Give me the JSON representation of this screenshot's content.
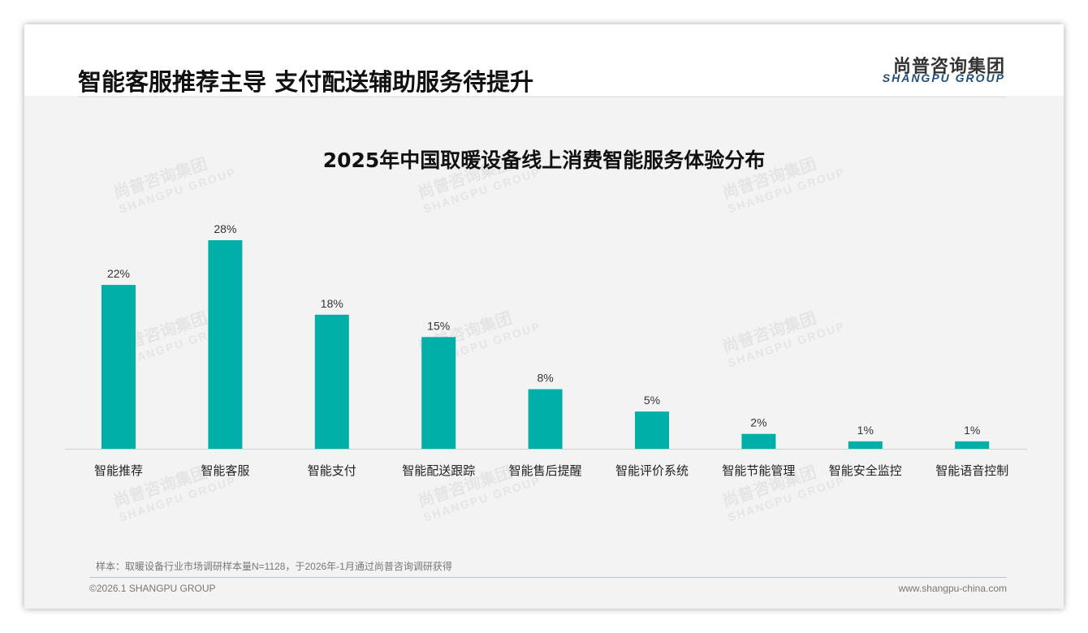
{
  "header": {
    "title": "智能客服推荐主导 支付配送辅助服务待提升",
    "logo_cn": "尚普咨询集团",
    "logo_en": "SHANGPU GROUP"
  },
  "chart_data": {
    "type": "bar",
    "title": "2025年中国取暖设备线上消费智能服务体验分布",
    "categories": [
      "智能推荐",
      "智能客服",
      "智能支付",
      "智能配送跟踪",
      "智能售后提醒",
      "智能评价系统",
      "智能节能管理",
      "智能安全监控",
      "智能语音控制"
    ],
    "values": [
      22,
      28,
      18,
      15,
      8,
      5,
      2,
      1,
      1
    ],
    "value_labels": [
      "22%",
      "28%",
      "18%",
      "15%",
      "8%",
      "5%",
      "2%",
      "1%",
      "1%"
    ],
    "unit": "%",
    "ylim": [
      0,
      30
    ],
    "grid": false,
    "color": "#00b0a8"
  },
  "footer": {
    "note": "样本：取暖设备行业市场调研样本量N=1128，于2026年-1月通过尚普咨询调研获得",
    "copyright": "©2026.1 SHANGPU GROUP",
    "url": "www.shangpu-china.com"
  }
}
